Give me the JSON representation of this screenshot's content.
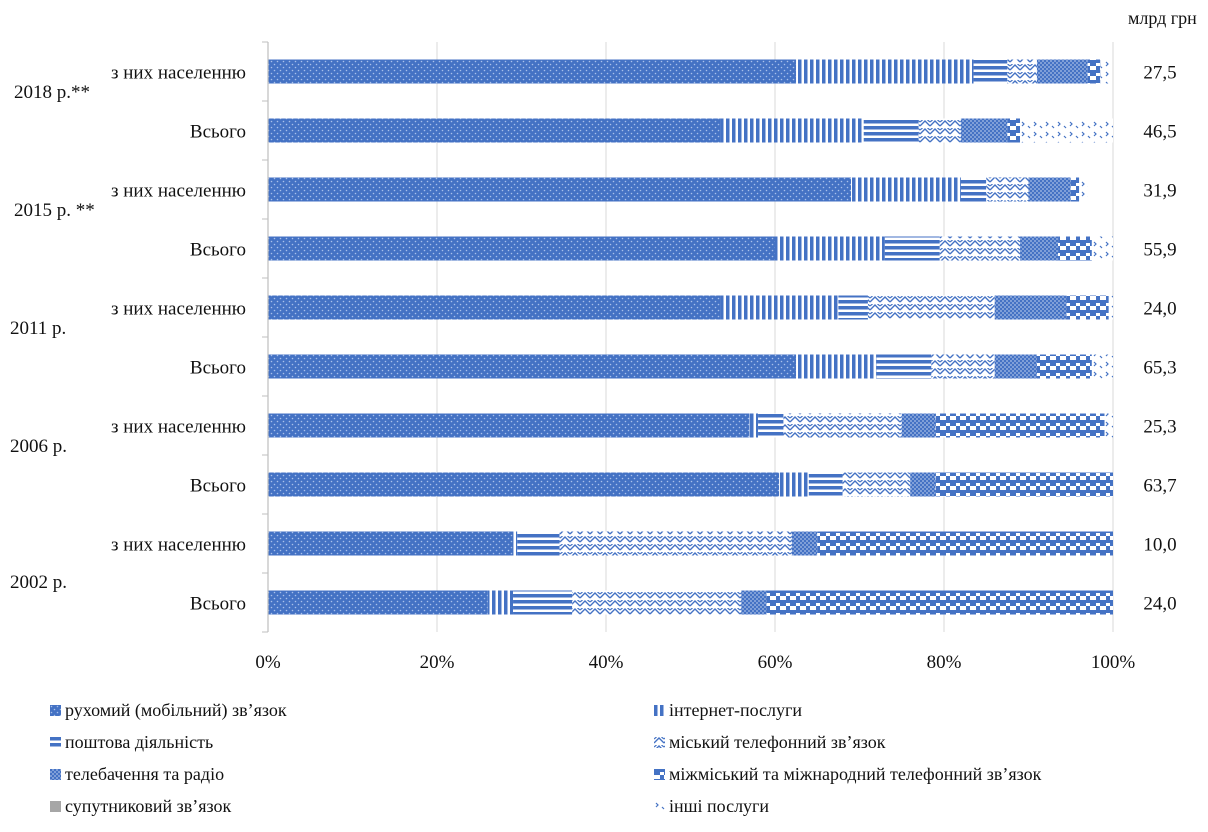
{
  "chart_data": {
    "type": "bar",
    "orientation": "horizontal",
    "stacked": "percent",
    "unit_label": "млрд грн",
    "xlim": [
      0,
      100
    ],
    "x_ticks": [
      "0%",
      "20%",
      "40%",
      "60%",
      "80%",
      "100%"
    ],
    "grid": true,
    "legend_position": "bottom",
    "groups": [
      "2018 р.**",
      "2015 р. **",
      "2011 р.",
      "2006 р.",
      "2002 р."
    ],
    "categories": [
      {
        "group": "2018 р.**",
        "label": "з них населенню",
        "total": "27,5"
      },
      {
        "group": "2018 р.**",
        "label": "Всього",
        "total": "46,5"
      },
      {
        "group": "2015 р. **",
        "label": "з них населенню",
        "total": "31,9"
      },
      {
        "group": "2015 р. **",
        "label": "Всього",
        "total": "55,9"
      },
      {
        "group": "2011 р.",
        "label": "з них населенню",
        "total": "24,0"
      },
      {
        "group": "2011 р.",
        "label": "Всього",
        "total": "65,3"
      },
      {
        "group": "2006 р.",
        "label": "з них населенню",
        "total": "25,3"
      },
      {
        "group": "2006 р.",
        "label": "Всього",
        "total": "63,7"
      },
      {
        "group": "2002 р.",
        "label": "з них населенню",
        "total": "10,0"
      },
      {
        "group": "2002 р.",
        "label": "Всього",
        "total": "24,0"
      }
    ],
    "series": [
      {
        "name": "рухомий (мобільний) зв’язок",
        "pattern": "dots",
        "values": [
          62.5,
          53.5,
          69,
          60,
          53.5,
          62.5,
          57,
          60.5,
          29,
          26
        ]
      },
      {
        "name": "інтернет-послуги",
        "pattern": "vlines",
        "values": [
          21,
          17,
          13,
          13,
          14,
          9.5,
          1,
          3.5,
          0.5,
          3
        ]
      },
      {
        "name": "поштова діяльність",
        "pattern": "hlines",
        "values": [
          4,
          6.5,
          3,
          6.5,
          3.5,
          6.5,
          3,
          4,
          5,
          7
        ]
      },
      {
        "name": "міський телефонний зв’язок",
        "pattern": "zigzag",
        "values": [
          3.5,
          5,
          5,
          9.5,
          15,
          7.5,
          14,
          8,
          27.5,
          20
        ]
      },
      {
        "name": "телебачення та радіо",
        "pattern": "fine",
        "values": [
          6,
          5.5,
          5,
          4.5,
          8.5,
          5,
          4,
          3,
          3,
          3
        ]
      },
      {
        "name": "міжміський та міжнародний телефонний зв’язок",
        "pattern": "checker",
        "values": [
          1.5,
          1.5,
          1,
          4,
          5,
          6.5,
          20,
          21,
          35,
          41
        ]
      },
      {
        "name": "супутниковий зв’язок",
        "pattern": "solid-gray",
        "values": [
          0,
          0,
          0,
          0,
          0,
          0,
          0,
          0,
          0,
          0
        ]
      },
      {
        "name": "інші послуги",
        "pattern": "sparse",
        "values": [
          1,
          11,
          1,
          2.5,
          0.5,
          2.5,
          1,
          0,
          0,
          0
        ]
      }
    ],
    "colors": {
      "bar": "#4472c4",
      "axis": "#bfbfbf",
      "grid": "#d9d9d9",
      "gray": "#a6a6a6"
    }
  }
}
